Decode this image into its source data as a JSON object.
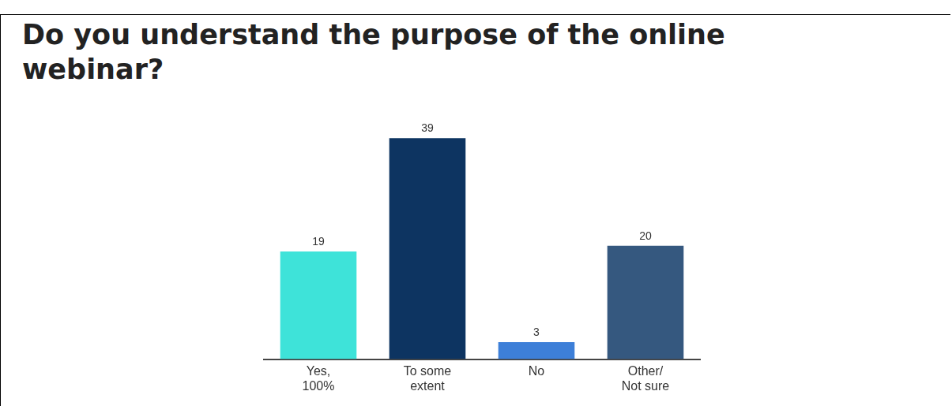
{
  "chart_data": {
    "type": "bar",
    "title": "Do you understand the purpose of the online webinar?",
    "categories": [
      "Yes,\n100%",
      "To some\nextent",
      "No",
      "Other/\nNot sure"
    ],
    "values": [
      19,
      39,
      3,
      20
    ],
    "colors": [
      "#3ee3d9",
      "#0d3461",
      "#3d7fd8",
      "#35587f"
    ],
    "ylim": [
      0,
      40
    ],
    "yticks": [
      0,
      10,
      20,
      30,
      40
    ],
    "grid": false,
    "data_labels": true,
    "tick_labels": "x"
  }
}
